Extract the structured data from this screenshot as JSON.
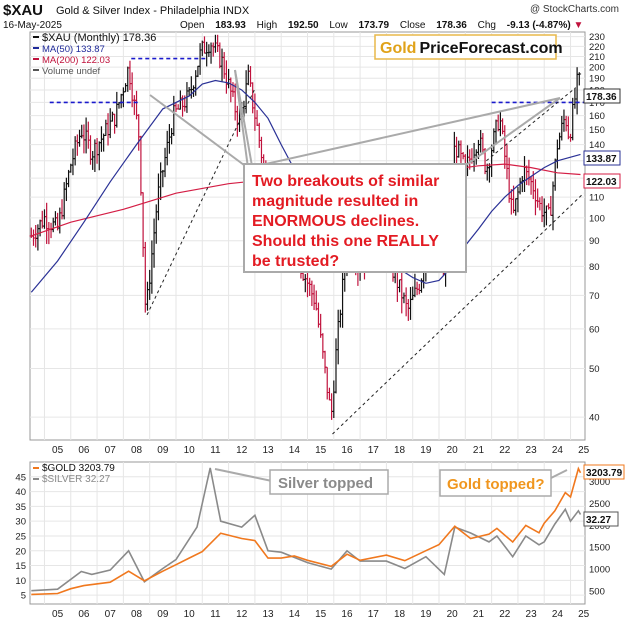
{
  "header": {
    "ticker": "$XAU",
    "subtitle": "Gold & Silver Index - Philadelphia INDX",
    "date": "16-May-2025",
    "open_label": "Open",
    "open": "183.93",
    "high_label": "High",
    "high": "192.50",
    "low_label": "Low",
    "low": "173.79",
    "close_label": "Close",
    "close": "178.36",
    "chg_label": "Chg",
    "chg": "-9.13 (-4.87%)",
    "chg_arrow": "▼",
    "brand": "@ StockCharts.com"
  },
  "logo": {
    "part1": "Gold",
    "part2": "PriceForecast.com"
  },
  "legend_top": [
    {
      "text": "$XAU (Monthly) 178.36",
      "color": "#111111"
    },
    {
      "text": "MA(50) 133.87",
      "color": "#1f2a9a"
    },
    {
      "text": "MA(200) 122.03",
      "color": "#c0123c"
    },
    {
      "text": "Volume undef",
      "color": "#555555"
    }
  ],
  "legend_bottom": [
    {
      "text": "$GOLD 3203.79",
      "color": "#f0781e"
    },
    {
      "text": "$SILVER 32.27",
      "color": "#8a8a8a"
    }
  ],
  "callout": {
    "lines": [
      "Two breakouts of similar",
      "magnitude resulted in",
      "ENORMOUS declines.",
      "Should this one REALLY",
      "be trusted?"
    ],
    "color": "#e31b23"
  },
  "notes": {
    "silver": "Silver topped",
    "gold": "Gold topped?"
  },
  "colors": {
    "up": "#111111",
    "down": "#c0123c",
    "ma50": "#2a3196",
    "ma200": "#d41e45",
    "gold": "#f0781e",
    "silver": "#8a8a8a",
    "grid": "#e6e6e6",
    "dashed_blue": "#1a1acc"
  },
  "chart_data": [
    {
      "type": "line",
      "title": "$XAU (Monthly)",
      "scale": "log",
      "ylim": [
        36,
        235
      ],
      "xlim": [
        2004.45,
        2025.55
      ],
      "x_ticks": [
        "05",
        "06",
        "07",
        "08",
        "09",
        "10",
        "11",
        "12",
        "13",
        "14",
        "15",
        "16",
        "17",
        "18",
        "19",
        "20",
        "21",
        "22",
        "23",
        "24",
        "25"
      ],
      "y_ticks": [
        40,
        50,
        60,
        70,
        80,
        90,
        100,
        110,
        120,
        130,
        140,
        150,
        160,
        170,
        180,
        190,
        200,
        210,
        220,
        230
      ],
      "price_path": [
        [
          2004.5,
          92
        ],
        [
          2005.0,
          100
        ],
        [
          2005.5,
          95
        ],
        [
          2006.0,
          128
        ],
        [
          2006.4,
          150
        ],
        [
          2006.8,
          135
        ],
        [
          2007.2,
          145
        ],
        [
          2007.7,
          160
        ],
        [
          2008.2,
          200
        ],
        [
          2008.6,
          145
        ],
        [
          2008.85,
          64
        ],
        [
          2009.3,
          110
        ],
        [
          2009.9,
          160
        ],
        [
          2010.5,
          175
        ],
        [
          2010.95,
          215
        ],
        [
          2011.3,
          225
        ],
        [
          2011.75,
          205
        ],
        [
          2012.4,
          155
        ],
        [
          2012.75,
          190
        ],
        [
          2013.2,
          140
        ],
        [
          2013.6,
          100
        ],
        [
          2013.9,
          110
        ],
        [
          2014.3,
          95
        ],
        [
          2014.75,
          80
        ],
        [
          2015.3,
          68
        ],
        [
          2015.9,
          40
        ],
        [
          2016.1,
          55
        ],
        [
          2016.6,
          100
        ],
        [
          2016.9,
          80
        ],
        [
          2017.5,
          85
        ],
        [
          2018.0,
          85
        ],
        [
          2018.6,
          70
        ],
        [
          2018.8,
          65
        ],
        [
          2019.3,
          75
        ],
        [
          2019.75,
          100
        ],
        [
          2020.2,
          75
        ],
        [
          2020.6,
          140
        ],
        [
          2021.0,
          125
        ],
        [
          2021.5,
          145
        ],
        [
          2021.8,
          125
        ],
        [
          2022.3,
          160
        ],
        [
          2022.8,
          100
        ],
        [
          2023.2,
          125
        ],
        [
          2023.6,
          115
        ],
        [
          2023.85,
          105
        ],
        [
          2024.2,
          100
        ],
        [
          2024.5,
          140
        ],
        [
          2024.8,
          160
        ],
        [
          2024.95,
          145
        ],
        [
          2025.3,
          193
        ],
        [
          2025.38,
          178.36
        ]
      ],
      "ma50": [
        [
          2004.5,
          71
        ],
        [
          2005.5,
          82
        ],
        [
          2006.5,
          98
        ],
        [
          2007.5,
          118
        ],
        [
          2008.5,
          140
        ],
        [
          2009.5,
          165
        ],
        [
          2010.5,
          175
        ],
        [
          2011.0,
          185
        ],
        [
          2011.5,
          188
        ],
        [
          2012.0,
          186
        ],
        [
          2012.5,
          180
        ],
        [
          2013.0,
          170
        ],
        [
          2013.5,
          158
        ],
        [
          2014.0,
          140
        ],
        [
          2014.5,
          125
        ],
        [
          2015.0,
          115
        ],
        [
          2015.5,
          105
        ],
        [
          2016.0,
          95
        ],
        [
          2016.5,
          88
        ],
        [
          2017.0,
          83
        ],
        [
          2017.5,
          81
        ],
        [
          2018.0,
          80
        ],
        [
          2018.5,
          79
        ],
        [
          2019.0,
          76
        ],
        [
          2019.5,
          74
        ],
        [
          2020.0,
          75
        ],
        [
          2020.5,
          80
        ],
        [
          2021.0,
          88
        ],
        [
          2021.5,
          95
        ],
        [
          2022.0,
          103
        ],
        [
          2022.5,
          110
        ],
        [
          2023.0,
          116
        ],
        [
          2023.5,
          121
        ],
        [
          2024.0,
          126
        ],
        [
          2024.5,
          130
        ],
        [
          2025.38,
          133.87
        ]
      ],
      "ma200": [
        [
          2004.5,
          92
        ],
        [
          2006.0,
          98
        ],
        [
          2008.0,
          104
        ],
        [
          2010.0,
          112
        ],
        [
          2012.0,
          117
        ],
        [
          2014.0,
          120
        ],
        [
          2016.0,
          122
        ],
        [
          2018.0,
          123
        ],
        [
          2020.0,
          124
        ],
        [
          2021.5,
          127
        ],
        [
          2022.5,
          128
        ],
        [
          2023.5,
          126
        ],
        [
          2024.5,
          123
        ],
        [
          2025.38,
          122.03
        ]
      ],
      "price_labels": [
        "178.36",
        "170",
        "133.87",
        "122.03"
      ],
      "hlines_dashed": [
        {
          "from": 2005.2,
          "to": 2008.6,
          "y": 170
        },
        {
          "from": 2008.3,
          "to": 2011.2,
          "y": 208
        },
        {
          "from": 2022.0,
          "to": 2025.55,
          "y": 170
        }
      ],
      "trendlines": [
        {
          "from": [
            2008.9,
            64
          ],
          "to": [
            2013.0,
            181
          ]
        },
        {
          "from": [
            2015.95,
            37
          ],
          "to": [
            2025.5,
            112
          ]
        },
        {
          "from": [
            2021.8,
            130
          ],
          "to": [
            2025.2,
            182
          ]
        }
      ]
    },
    {
      "type": "line",
      "title": "$GOLD / $SILVER",
      "xlim": [
        2004.45,
        2025.55
      ],
      "y_left_ticks": [
        5,
        10,
        15,
        20,
        25,
        30,
        35,
        40,
        45
      ],
      "y_right_ticks": [
        500,
        1000,
        1500,
        2000,
        2500,
        3000
      ],
      "price_labels": [
        "3203.79",
        "32.27"
      ],
      "series": [
        {
          "name": "$GOLD",
          "axis": "right",
          "ylim": [
            200,
            3450
          ],
          "values": [
            [
              2004.5,
              420
            ],
            [
              2005.5,
              440
            ],
            [
              2006.0,
              550
            ],
            [
              2006.5,
              620
            ],
            [
              2007.5,
              700
            ],
            [
              2008.2,
              950
            ],
            [
              2008.8,
              730
            ],
            [
              2009.5,
              950
            ],
            [
              2010.0,
              1100
            ],
            [
              2010.5,
              1250
            ],
            [
              2011.0,
              1400
            ],
            [
              2011.7,
              1820
            ],
            [
              2012.5,
              1700
            ],
            [
              2013.0,
              1650
            ],
            [
              2013.5,
              1250
            ],
            [
              2014.0,
              1250
            ],
            [
              2014.5,
              1300
            ],
            [
              2015.0,
              1200
            ],
            [
              2015.9,
              1060
            ],
            [
              2016.5,
              1340
            ],
            [
              2017.0,
              1200
            ],
            [
              2018.0,
              1320
            ],
            [
              2018.7,
              1190
            ],
            [
              2019.5,
              1420
            ],
            [
              2020.0,
              1560
            ],
            [
              2020.6,
              1980
            ],
            [
              2021.2,
              1700
            ],
            [
              2021.9,
              1800
            ],
            [
              2022.2,
              1930
            ],
            [
              2022.8,
              1620
            ],
            [
              2023.3,
              2000
            ],
            [
              2023.8,
              1830
            ],
            [
              2024.0,
              2050
            ],
            [
              2024.4,
              2330
            ],
            [
              2024.8,
              2750
            ],
            [
              2025.0,
              2650
            ],
            [
              2025.3,
              3300
            ],
            [
              2025.38,
              3203.79
            ]
          ]
        },
        {
          "name": "$SILVER",
          "axis": "left",
          "ylim": [
            2,
            50
          ],
          "values": [
            [
              2004.5,
              6.5
            ],
            [
              2005.5,
              7
            ],
            [
              2006.4,
              13
            ],
            [
              2006.8,
              12
            ],
            [
              2007.5,
              13.5
            ],
            [
              2008.2,
              20
            ],
            [
              2008.8,
              9.5
            ],
            [
              2009.5,
              14
            ],
            [
              2010.0,
              17
            ],
            [
              2010.8,
              28
            ],
            [
              2011.3,
              48
            ],
            [
              2011.7,
              30
            ],
            [
              2012.5,
              28
            ],
            [
              2013.0,
              32
            ],
            [
              2013.5,
              20
            ],
            [
              2014.0,
              19.5
            ],
            [
              2015.0,
              16
            ],
            [
              2015.9,
              13.8
            ],
            [
              2016.5,
              20
            ],
            [
              2017.0,
              16.5
            ],
            [
              2018.0,
              16.5
            ],
            [
              2018.7,
              14
            ],
            [
              2019.5,
              18
            ],
            [
              2020.2,
              12
            ],
            [
              2020.6,
              28
            ],
            [
              2021.2,
              26
            ],
            [
              2021.9,
              23
            ],
            [
              2022.2,
              25
            ],
            [
              2022.8,
              18
            ],
            [
              2023.3,
              25
            ],
            [
              2023.8,
              22
            ],
            [
              2024.0,
              23
            ],
            [
              2024.4,
              29
            ],
            [
              2024.8,
              34
            ],
            [
              2025.0,
              30
            ],
            [
              2025.3,
              33.5
            ],
            [
              2025.38,
              32.27
            ]
          ]
        }
      ]
    }
  ]
}
